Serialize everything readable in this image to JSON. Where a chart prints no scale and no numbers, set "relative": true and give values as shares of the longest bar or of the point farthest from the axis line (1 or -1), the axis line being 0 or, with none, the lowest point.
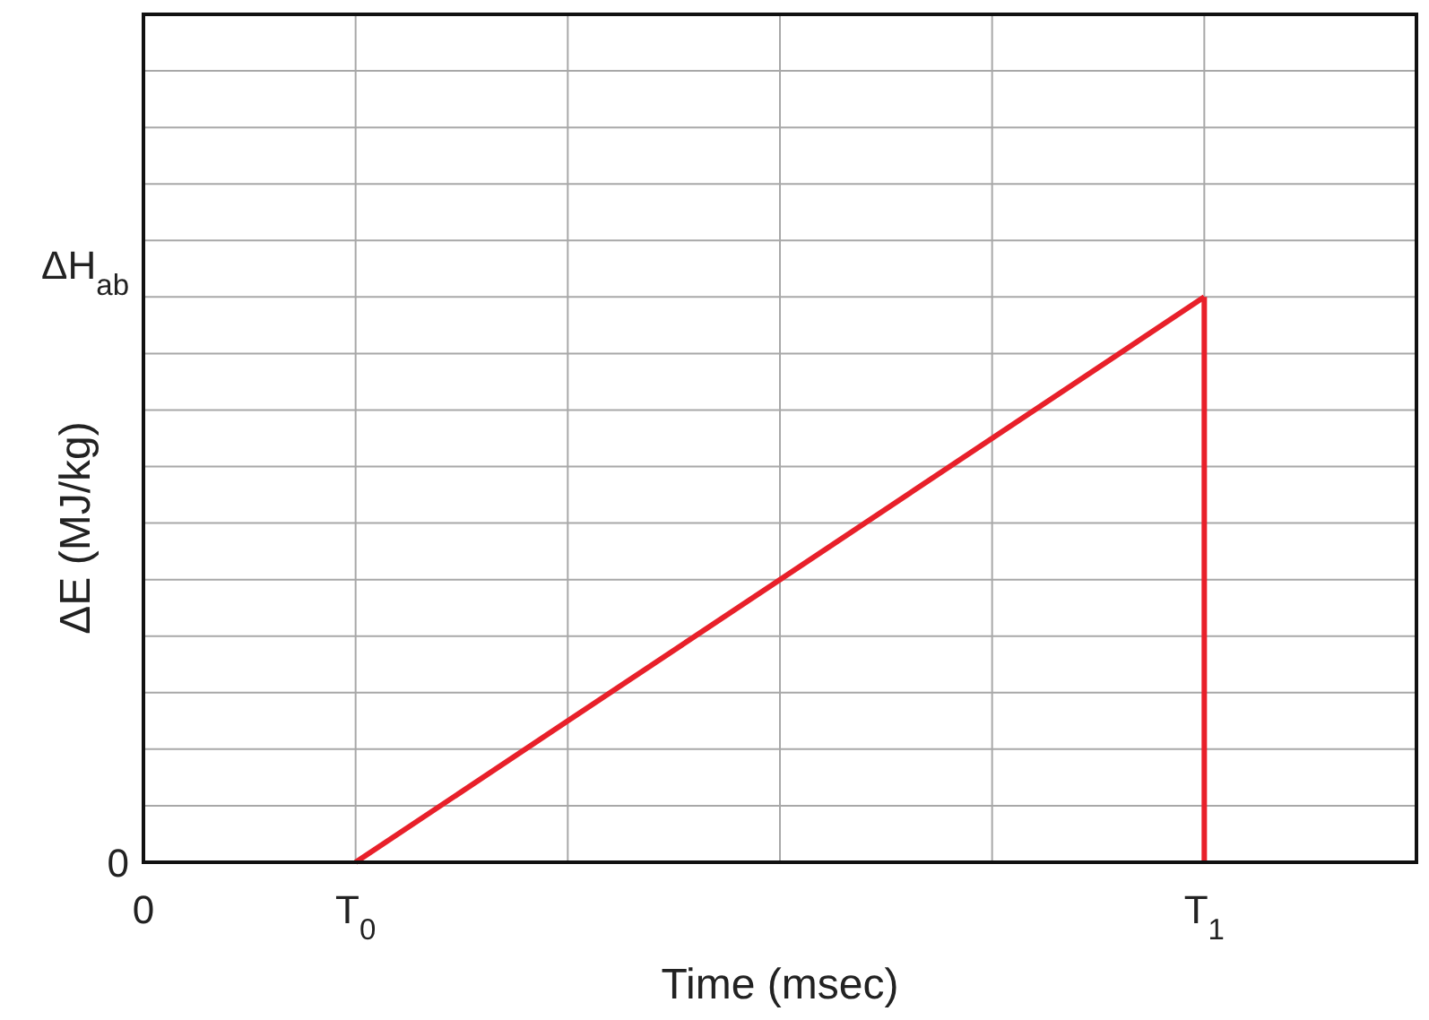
{
  "chart_data": {
    "type": "line",
    "xlabel": "Time (msec)",
    "ylabel": "ΔE (MJ/kg)",
    "relative": true,
    "categories": [
      "0",
      "T$_{0}$",
      null,
      null,
      null,
      "T$_{1}$",
      null
    ],
    "series": [
      {
        "color": "#e8202a",
        "values": [
          null,
          0,
          0.25,
          0.5,
          0.75,
          1,
          null
        ]
      },
      {
        "color": "#e8202a",
        "x": [
          "T$_{1}$",
          "T$_{1}$"
        ],
        "values": [
          1,
          0
        ]
      }
    ],
    "annotations": [
      "0",
      "ΔH$_{ab}$"
    ],
    "grid": true,
    "line_style": "solid"
  }
}
